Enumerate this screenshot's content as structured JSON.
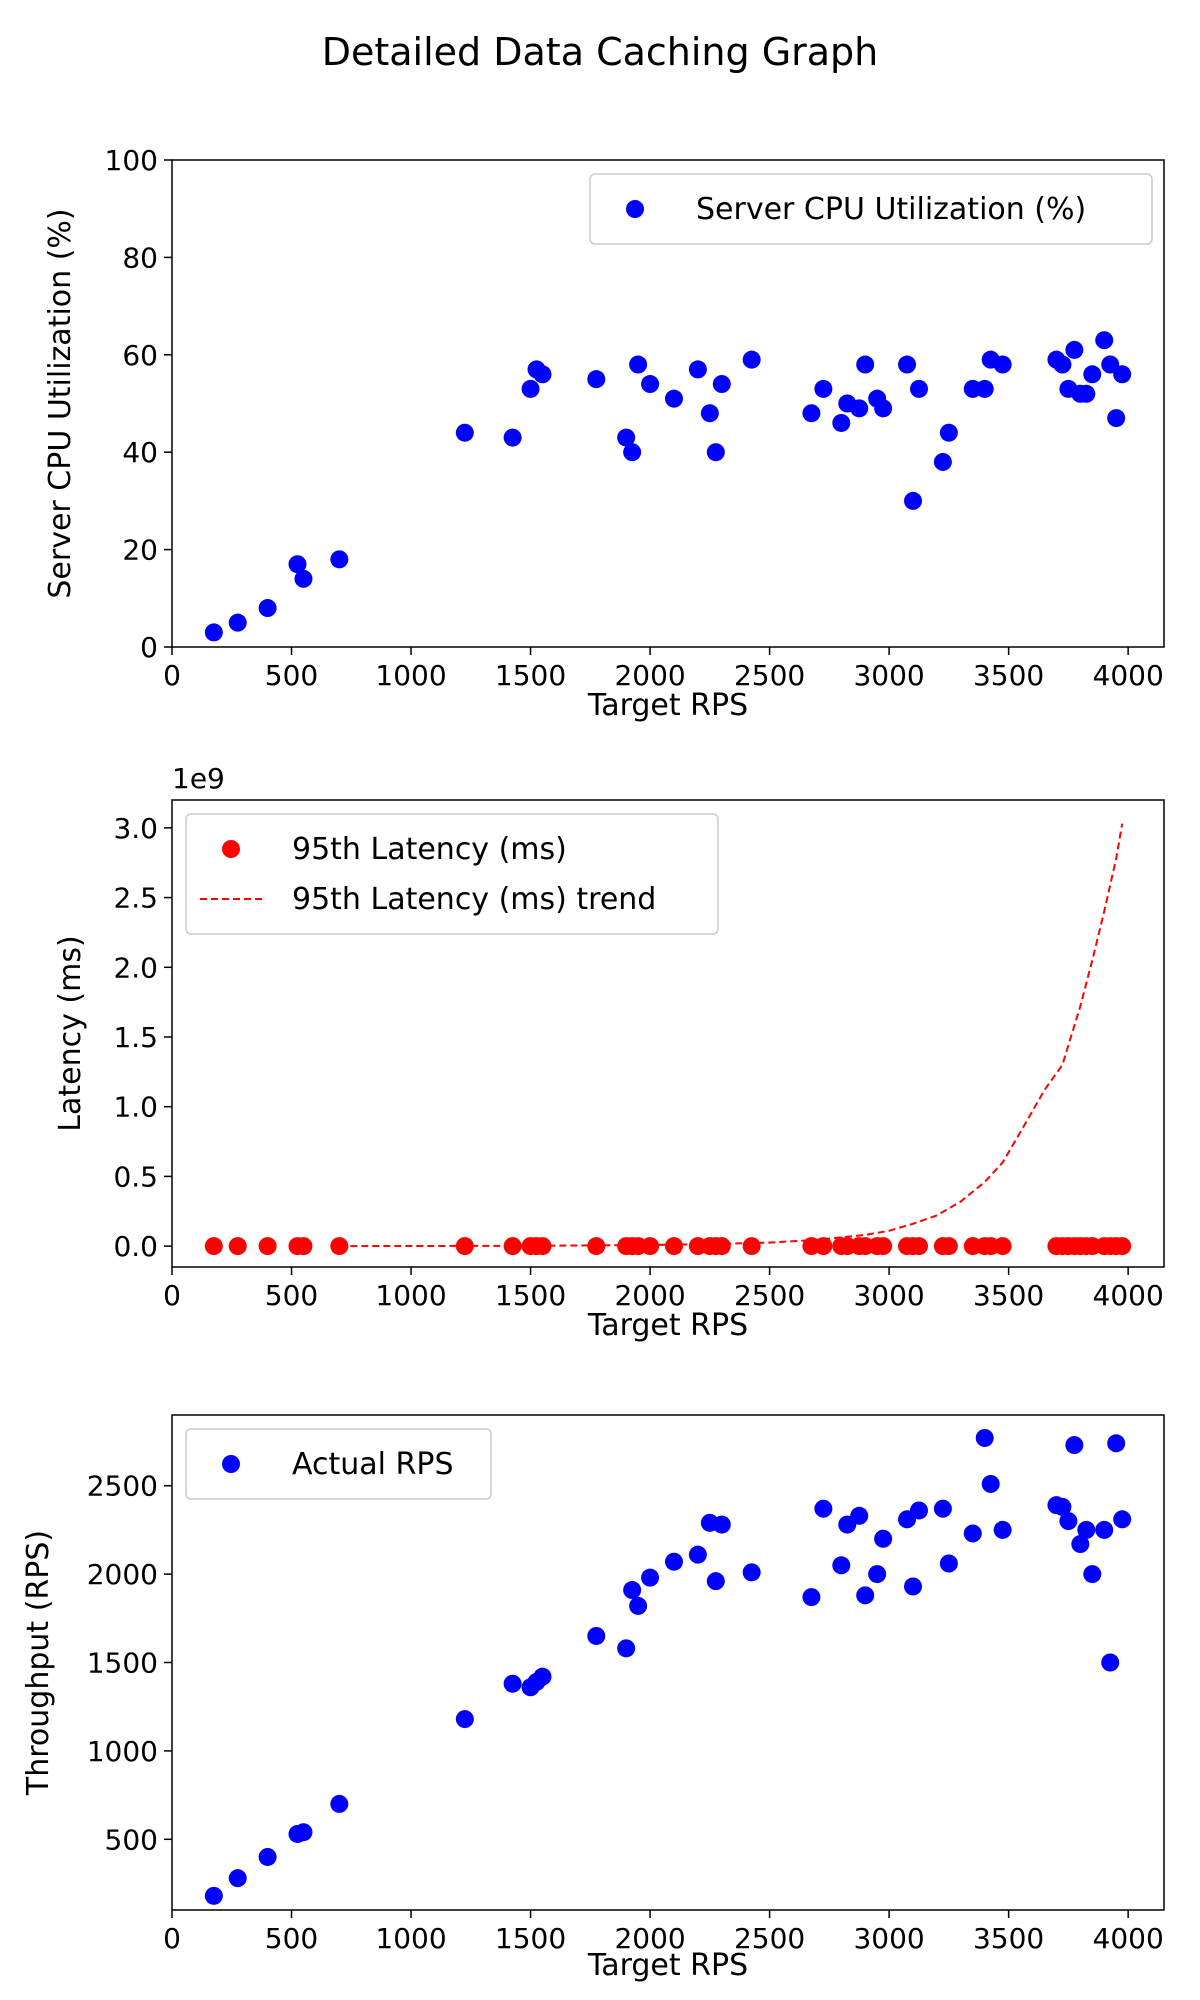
{
  "figure": {
    "title": "Detailed Data Caching Graph"
  },
  "chart_data": [
    {
      "type": "scatter",
      "title": "",
      "xlabel": "Target RPS",
      "ylabel": "Server CPU Utilization (%)",
      "xlim": [
        0,
        4150
      ],
      "ylim": [
        0,
        100
      ],
      "xticks": [
        0,
        500,
        1000,
        1500,
        2000,
        2500,
        3000,
        3500,
        4000
      ],
      "yticks": [
        0,
        20,
        40,
        60,
        80,
        100
      ],
      "grid": false,
      "legend_position": "top-right",
      "series": [
        {
          "name": "Server CPU Utilization (%)",
          "color": "#0000ff",
          "marker": "circle",
          "x": [
            175,
            275,
            400,
            525,
            550,
            700,
            1225,
            1425,
            1500,
            1525,
            1550,
            1775,
            1900,
            1925,
            1950,
            2000,
            2100,
            2200,
            2250,
            2275,
            2300,
            2425,
            2675,
            2725,
            2800,
            2825,
            2875,
            2900,
            2950,
            2975,
            3075,
            3100,
            3125,
            3225,
            3250,
            3350,
            3400,
            3425,
            3475,
            3700,
            3725,
            3750,
            3775,
            3800,
            3825,
            3850,
            3900,
            3925,
            3950,
            3975
          ],
          "y": [
            3,
            5,
            8,
            17,
            14,
            18,
            44,
            43,
            53,
            57,
            56,
            55,
            43,
            40,
            58,
            54,
            51,
            57,
            48,
            40,
            54,
            59,
            48,
            53,
            46,
            50,
            49,
            58,
            51,
            49,
            58,
            30,
            53,
            38,
            44,
            53,
            53,
            59,
            58,
            59,
            58,
            53,
            61,
            52,
            52,
            56,
            63,
            58,
            47,
            56
          ]
        }
      ]
    },
    {
      "type": "scatter",
      "title": "",
      "xlabel": "Target RPS",
      "ylabel": "Latency (ms)",
      "y_offset_label": "1e9",
      "xlim": [
        0,
        4150
      ],
      "ylim": [
        -0.15,
        3.2
      ],
      "xticks": [
        0,
        500,
        1000,
        1500,
        2000,
        2500,
        3000,
        3500,
        4000
      ],
      "yticks": [
        0.0,
        0.5,
        1.0,
        1.5,
        2.0,
        2.5,
        3.0
      ],
      "ytick_labels": [
        "0.0",
        "0.5",
        "1.0",
        "1.5",
        "2.0",
        "2.5",
        "3.0"
      ],
      "grid": false,
      "legend_position": "top-left",
      "series": [
        {
          "name": "95th Latency (ms)",
          "color": "#ff0000",
          "marker": "circle",
          "x": [
            175,
            275,
            400,
            525,
            550,
            700,
            1225,
            1425,
            1500,
            1525,
            1550,
            1775,
            1900,
            1925,
            1950,
            2000,
            2100,
            2200,
            2250,
            2275,
            2300,
            2425,
            2675,
            2725,
            2800,
            2825,
            2875,
            2900,
            2950,
            2975,
            3075,
            3100,
            3125,
            3225,
            3250,
            3350,
            3400,
            3425,
            3475,
            3700,
            3725,
            3750,
            3775,
            3800,
            3825,
            3850,
            3900,
            3925,
            3950,
            3975
          ],
          "y": [
            0,
            0,
            0,
            0,
            0,
            0,
            0,
            0,
            0,
            0,
            0,
            0,
            0,
            0,
            0,
            0,
            0,
            0,
            0,
            0,
            0,
            0,
            0,
            0,
            0,
            0,
            0,
            0,
            0,
            0,
            0,
            0,
            0,
            0,
            0,
            0,
            0,
            0,
            0,
            0,
            0,
            0,
            0,
            0,
            0,
            0,
            0,
            0,
            0,
            0
          ]
        },
        {
          "name": "95th Latency (ms) trend",
          "color": "#ff0000",
          "style": "dashed",
          "x": [
            700,
            1000,
            1500,
            2000,
            2250,
            2500,
            2700,
            2900,
            3000,
            3100,
            3200,
            3300,
            3400,
            3475,
            3550,
            3650,
            3725,
            3800,
            3850,
            3900,
            3950,
            3975
          ],
          "y": [
            0.0,
            0.0005,
            0.002,
            0.008,
            0.014,
            0.025,
            0.045,
            0.08,
            0.11,
            0.16,
            0.22,
            0.32,
            0.46,
            0.6,
            0.82,
            1.12,
            1.3,
            1.72,
            2.05,
            2.4,
            2.78,
            3.03
          ]
        }
      ]
    },
    {
      "type": "scatter",
      "title": "",
      "xlabel": "Target RPS",
      "ylabel": "Throughput (RPS)",
      "xlim": [
        0,
        4150
      ],
      "ylim": [
        100,
        2900
      ],
      "xticks": [
        0,
        500,
        1000,
        1500,
        2000,
        2500,
        3000,
        3500,
        4000
      ],
      "yticks": [
        500,
        1000,
        1500,
        2000,
        2500
      ],
      "grid": false,
      "legend_position": "top-left",
      "series": [
        {
          "name": "Actual RPS",
          "color": "#0000ff",
          "marker": "circle",
          "x": [
            175,
            275,
            400,
            525,
            550,
            700,
            1225,
            1425,
            1500,
            1525,
            1550,
            1775,
            1900,
            1925,
            1950,
            2000,
            2100,
            2200,
            2250,
            2275,
            2300,
            2425,
            2675,
            2725,
            2800,
            2825,
            2875,
            2900,
            2950,
            2975,
            3075,
            3100,
            3125,
            3225,
            3250,
            3350,
            3400,
            3425,
            3475,
            3700,
            3725,
            3750,
            3775,
            3800,
            3825,
            3850,
            3900,
            3925,
            3950,
            3975
          ],
          "y": [
            180,
            280,
            400,
            530,
            540,
            700,
            1180,
            1380,
            1360,
            1390,
            1420,
            1650,
            1580,
            1910,
            1820,
            1980,
            2070,
            2110,
            2290,
            1960,
            2280,
            2010,
            1870,
            2370,
            2050,
            2280,
            2330,
            1880,
            2000,
            2200,
            2310,
            1930,
            2360,
            2370,
            2060,
            2230,
            2770,
            2510,
            2250,
            2390,
            2380,
            2300,
            2730,
            2170,
            2250,
            2000,
            2250,
            1500,
            2740,
            2310
          ]
        }
      ]
    }
  ]
}
